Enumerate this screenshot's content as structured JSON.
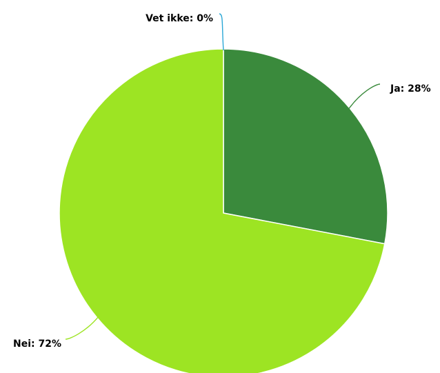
{
  "chart_data": {
    "type": "pie",
    "title": "",
    "start_angle_deg": 0,
    "direction": "clockwise",
    "legend": "none",
    "slices": [
      {
        "name": "Ja",
        "value": 28,
        "label": "Ja: 28%",
        "color": "#3a8a3c"
      },
      {
        "name": "Nei",
        "value": 72,
        "label": "Nei: 72%",
        "color": "#9de423"
      },
      {
        "name": "Vet ikke",
        "value": 0,
        "label": "Vet ikke: 0%",
        "color": "#2aa7d6"
      }
    ]
  }
}
